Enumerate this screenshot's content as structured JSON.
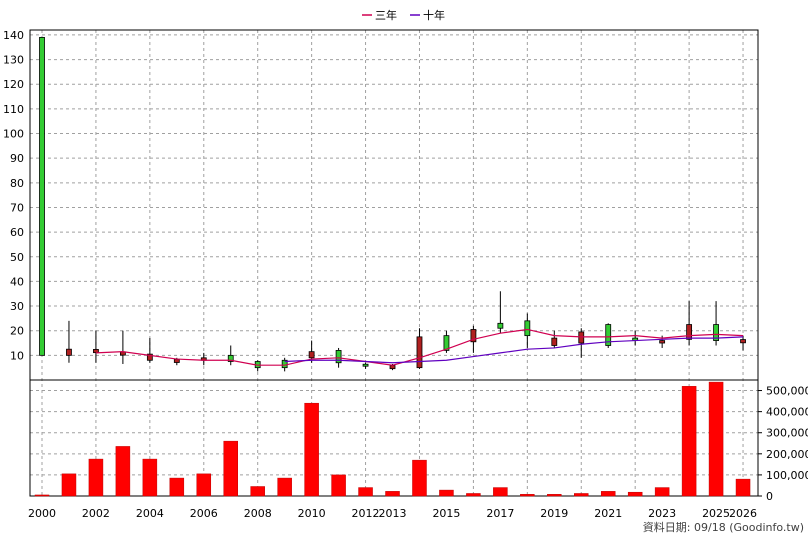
{
  "legend": [
    {
      "name": "三年",
      "color": "#d00050"
    },
    {
      "name": "十年",
      "color": "#6000c0"
    }
  ],
  "footer": "資料日期: 09/18 (Goodinfo.tw)",
  "colors": {
    "up": "#33cc33",
    "down": "#b02020",
    "volume": "#ff0000",
    "ma3": "#d00050",
    "ma10": "#6000c0"
  },
  "chart_data": [
    {
      "type": "candlestick",
      "title": "",
      "x": [
        "2000",
        "2001",
        "2002",
        "2003",
        "2004",
        "2005",
        "2006",
        "2007",
        "2008",
        "2009",
        "2010",
        "2011",
        "2012",
        "2013",
        "2014",
        "2015",
        "2016",
        "2017",
        "2018",
        "2019",
        "2020",
        "2021",
        "2022",
        "2023",
        "2024",
        "2025",
        "2026"
      ],
      "x_tick_labels": [
        "2000",
        "2002",
        "2004",
        "2006",
        "2008",
        "2010",
        "2012",
        "2013",
        "2015",
        "2017",
        "2019",
        "2021",
        "2023",
        "2025",
        "2026"
      ],
      "ylim": [
        0,
        142
      ],
      "y_ticks": [
        10,
        20,
        30,
        40,
        50,
        60,
        70,
        80,
        90,
        100,
        110,
        120,
        130,
        140
      ],
      "grid": true,
      "series": [
        {
          "kind": "ohlc",
          "open": [
            10,
            12.5,
            12,
            11,
            10.5,
            8,
            9,
            7.5,
            5,
            5,
            11.5,
            7,
            6,
            5.5,
            17.5,
            12,
            20.5,
            21,
            18,
            17,
            19.5,
            14,
            16,
            16,
            22.5,
            16,
            16
          ],
          "high": [
            139,
            24,
            20,
            20,
            17,
            9,
            11,
            14,
            8,
            9,
            16,
            13,
            7,
            6.5,
            21,
            20,
            22,
            36,
            27,
            20,
            21,
            23,
            20,
            18,
            32,
            32,
            18
          ],
          "low": [
            10,
            7,
            7,
            6.5,
            7,
            6,
            6,
            6,
            3.5,
            3.5,
            7,
            5,
            4.5,
            4,
            4.5,
            11,
            11,
            19,
            13,
            13,
            9,
            13,
            14,
            13,
            14,
            14,
            12
          ],
          "close": [
            139,
            10,
            11.5,
            10.5,
            8,
            7.5,
            8,
            10,
            7.5,
            8,
            9,
            12,
            6,
            5,
            5,
            18,
            15.5,
            23,
            24,
            14,
            15,
            22.5,
            17,
            15,
            16.5,
            22.5,
            15.5
          ]
        },
        {
          "name": "三年",
          "kind": "line",
          "values": [
            null,
            null,
            11,
            11.5,
            10,
            8.5,
            8,
            8,
            6,
            6,
            8.5,
            9,
            7.5,
            6,
            9,
            12.5,
            16.5,
            19,
            20.5,
            18,
            17.5,
            17.5,
            18,
            17,
            18,
            18.5,
            18
          ]
        },
        {
          "name": "十年",
          "kind": "line",
          "values": [
            null,
            null,
            null,
            null,
            null,
            null,
            null,
            null,
            null,
            7.5,
            8,
            8,
            7.5,
            7,
            7.5,
            8,
            9.5,
            11,
            12.5,
            13,
            14.5,
            15.5,
            16,
            16.5,
            17,
            17,
            17.5
          ]
        }
      ]
    },
    {
      "type": "bar",
      "title": "",
      "categories": [
        "2000",
        "2001",
        "2002",
        "2003",
        "2004",
        "2005",
        "2006",
        "2007",
        "2008",
        "2009",
        "2010",
        "2011",
        "2012",
        "2013",
        "2014",
        "2015",
        "2016",
        "2017",
        "2018",
        "2019",
        "2020",
        "2021",
        "2022",
        "2023",
        "2024",
        "2025",
        "2026"
      ],
      "ylim": [
        0,
        550000
      ],
      "y_ticks": [
        "0",
        "100,000",
        "200,000",
        "300,000",
        "400,000",
        "500,000"
      ],
      "y_tick_values": [
        0,
        100000,
        200000,
        300000,
        400000,
        500000
      ],
      "values": [
        5000,
        105000,
        175000,
        235000,
        175000,
        85000,
        105000,
        260000,
        45000,
        85000,
        440000,
        100000,
        40000,
        22000,
        170000,
        28000,
        12000,
        40000,
        8000,
        8000,
        12000,
        22000,
        18000,
        40000,
        520000,
        540000,
        80000
      ]
    }
  ]
}
